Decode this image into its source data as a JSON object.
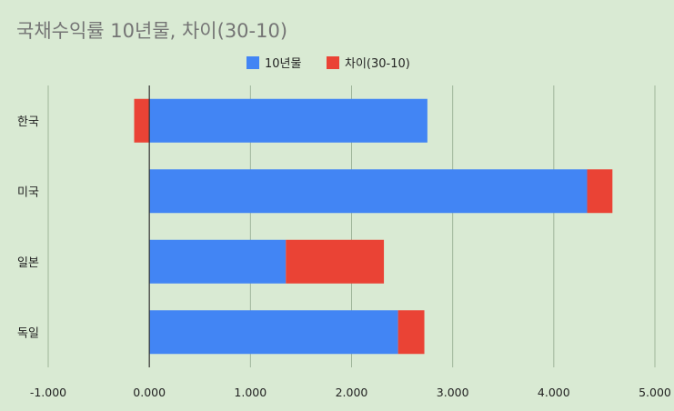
{
  "chart_data": {
    "type": "bar",
    "orientation": "horizontal",
    "stacked": true,
    "title": "국채수익률 10년물, 차이(30-10)",
    "categories": [
      "한국",
      "미국",
      "일본",
      "독일"
    ],
    "series": [
      {
        "name": "10년물",
        "color": "#4285f4",
        "values": [
          2.75,
          4.33,
          1.35,
          2.46
        ]
      },
      {
        "name": "차이(30-10)",
        "color": "#ea4335",
        "values": [
          -0.15,
          0.25,
          0.97,
          0.26
        ]
      }
    ],
    "xlim": [
      -1,
      5
    ],
    "xticks": [
      "-1.000",
      "0.000",
      "1.000",
      "2.000",
      "3.000",
      "4.000",
      "5.000"
    ],
    "grid": true,
    "legend_position": "top"
  }
}
